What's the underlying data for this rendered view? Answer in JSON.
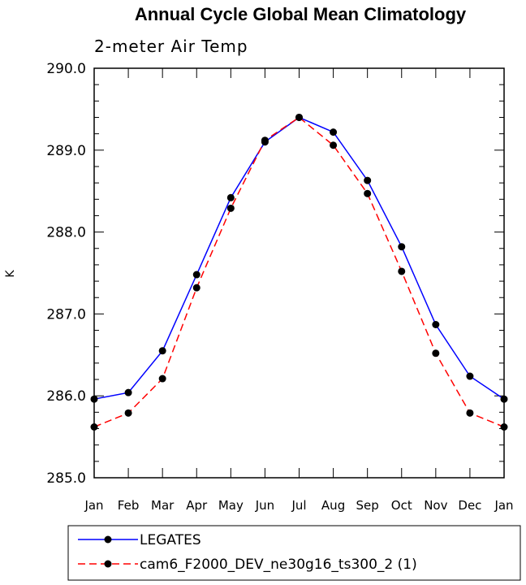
{
  "chart_data": {
    "type": "line",
    "title": "Annual Cycle Global Mean Climatology",
    "subtitle": "2-meter Air Temp",
    "ylabel": "K",
    "xlabel": "",
    "categories": [
      "Jan",
      "Feb",
      "Mar",
      "Apr",
      "May",
      "Jun",
      "Jul",
      "Aug",
      "Sep",
      "Oct",
      "Nov",
      "Dec",
      "Jan"
    ],
    "ylim": [
      285.0,
      290.0
    ],
    "yticks": [
      "285.0",
      "286.0",
      "287.0",
      "288.0",
      "289.0",
      "290.0"
    ],
    "series": [
      {
        "name": "LEGATES",
        "color": "#0000ff",
        "dash": "solid",
        "values": [
          285.96,
          286.04,
          286.55,
          287.48,
          288.42,
          289.1,
          289.4,
          289.22,
          288.63,
          287.82,
          286.87,
          286.24,
          285.96
        ]
      },
      {
        "name": "cam6_F2000_DEV_ne30g16_ts300_2 (1)",
        "color": "#ff0000",
        "dash": "dashed",
        "values": [
          285.62,
          285.79,
          286.21,
          287.32,
          288.29,
          289.12,
          289.4,
          289.06,
          288.47,
          287.52,
          286.52,
          285.79,
          285.62
        ]
      }
    ],
    "legend_position": "bottom",
    "grid": false
  }
}
